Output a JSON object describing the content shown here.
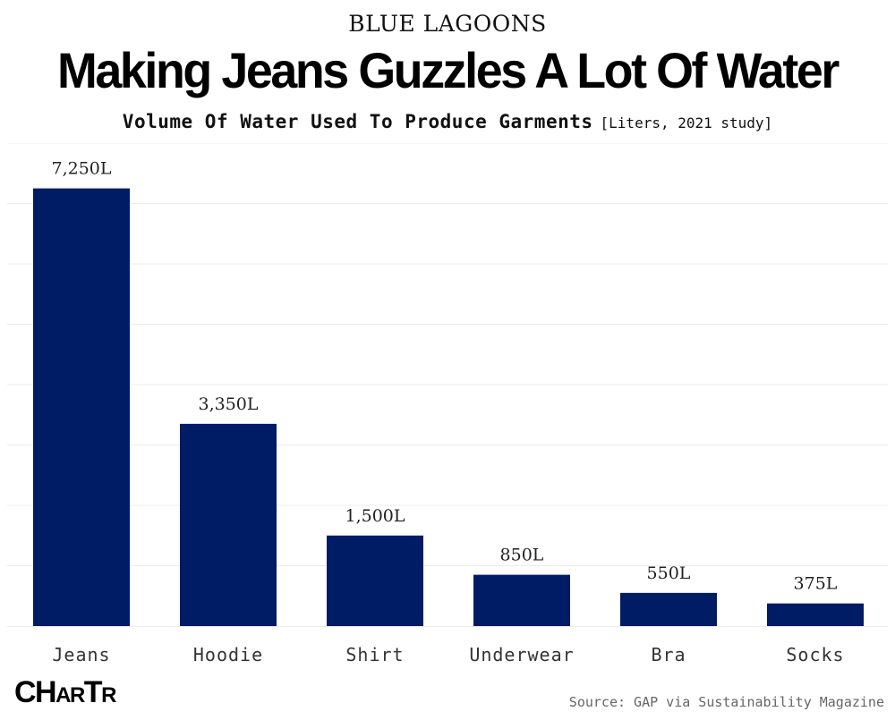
{
  "header": {
    "kicker": "BLUE LAGOONS",
    "title": "Making Jeans Guzzles A Lot Of Water",
    "subtitle": "Volume Of Water Used To Produce Garments",
    "subtitle_note": "[Liters, 2021 study]"
  },
  "footer": {
    "logo_big_1": "CH",
    "logo_small": "AR",
    "logo_big_2": "T",
    "logo_small_2": "R",
    "source": "Source: GAP via Sustainability Magazine"
  },
  "colors": {
    "bar": "#001c64",
    "grid": "#ececec"
  },
  "chart_data": {
    "type": "bar",
    "categories": [
      "Jeans",
      "Hoodie",
      "Shirt",
      "Underwear",
      "Bra",
      "Socks"
    ],
    "values": [
      7250,
      3350,
      1500,
      850,
      550,
      375
    ],
    "value_labels": [
      "7,250L",
      "3,350L",
      "1,500L",
      "850L",
      "550L",
      "375L"
    ],
    "title": "Volume Of Water Used To Produce Garments",
    "xlabel": "",
    "ylabel": "",
    "ylim": [
      0,
      8000
    ],
    "grid": true,
    "unit": "L"
  }
}
